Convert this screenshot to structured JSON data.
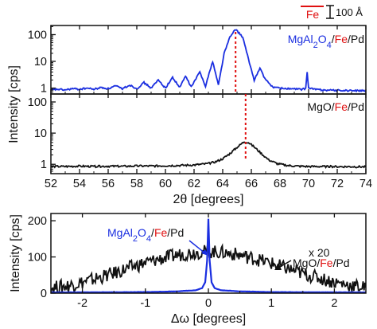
{
  "colors": {
    "blue": "#1a2ee0",
    "black": "#111111",
    "red": "#e01010"
  },
  "shared": {
    "y_title": "Intensity [cps]"
  },
  "scale_bar": {
    "fe_text": "Fe",
    "length_text": "100 Å"
  },
  "chart_data": [
    {
      "id": "xrd-mgal2o4",
      "type": "line",
      "scale": "log",
      "xlim": [
        52,
        74
      ],
      "ylim": [
        0.6,
        220
      ],
      "yticks": [
        1,
        10,
        100
      ],
      "ytick_labels": [
        "1",
        "10",
        "100"
      ],
      "label_parts": [
        {
          "text": "MgAl",
          "color": "blue"
        },
        {
          "text": "2",
          "color": "blue",
          "sub": true
        },
        {
          "text": "O",
          "color": "blue"
        },
        {
          "text": "4",
          "color": "blue",
          "sub": true
        },
        {
          "text": "/",
          "color": "black"
        },
        {
          "text": "Fe",
          "color": "red"
        },
        {
          "text": "/Pd",
          "color": "black"
        }
      ],
      "peak_marker_x": 64.9,
      "series": [
        {
          "color": "blue",
          "points": [
            [
              52,
              0.85
            ],
            [
              52.5,
              0.9
            ],
            [
              53,
              0.85
            ],
            [
              53.5,
              0.95
            ],
            [
              54,
              0.9
            ],
            [
              54.5,
              1.0
            ],
            [
              55,
              0.9
            ],
            [
              55.5,
              1.05
            ],
            [
              56,
              0.95
            ],
            [
              56.5,
              1.2
            ],
            [
              57,
              0.95
            ],
            [
              57.5,
              1.3
            ],
            [
              58,
              0.95
            ],
            [
              58.5,
              1.6
            ],
            [
              59,
              1.0
            ],
            [
              59.5,
              2.0
            ],
            [
              60,
              1.0
            ],
            [
              60.5,
              2.5
            ],
            [
              61,
              1.05
            ],
            [
              61.4,
              2.8
            ],
            [
              61.8,
              1.1
            ],
            [
              62.4,
              4.0
            ],
            [
              62.8,
              1.2
            ],
            [
              63.3,
              10.0
            ],
            [
              63.7,
              1.3
            ],
            [
              64.1,
              20.0
            ],
            [
              64.5,
              80.0
            ],
            [
              64.9,
              160.0
            ],
            [
              65.4,
              80.0
            ],
            [
              65.8,
              12.0
            ],
            [
              66.2,
              2.0
            ],
            [
              66.6,
              5.5
            ],
            [
              67.0,
              2.0
            ],
            [
              67.5,
              1.1
            ],
            [
              68,
              1.0
            ],
            [
              68.5,
              0.95
            ],
            [
              69.5,
              0.9
            ],
            [
              69.8,
              0.95
            ],
            [
              69.9,
              4.0
            ],
            [
              70.0,
              1.0
            ],
            [
              70.5,
              0.9
            ],
            [
              71,
              0.85
            ],
            [
              72,
              0.82
            ],
            [
              73,
              0.8
            ],
            [
              74,
              0.8
            ]
          ]
        }
      ]
    },
    {
      "id": "xrd-mgo",
      "type": "line",
      "scale": "log",
      "xlim": [
        52,
        74
      ],
      "ylim": [
        0.5,
        180
      ],
      "yticks": [
        1,
        10,
        100
      ],
      "ytick_labels": [
        "1",
        "10",
        "100"
      ],
      "xticks": [
        52,
        54,
        56,
        58,
        60,
        62,
        64,
        66,
        68,
        70,
        72,
        74
      ],
      "xtick_labels": [
        "52",
        "54",
        "56",
        "58",
        "60",
        "62",
        "64",
        "66",
        "68",
        "70",
        "72",
        "74"
      ],
      "xlabel": "2θ [degrees]",
      "label_parts": [
        {
          "text": "MgO/",
          "color": "black"
        },
        {
          "text": "Fe",
          "color": "red"
        },
        {
          "text": "/Pd",
          "color": "black"
        }
      ],
      "peak_marker_x": 65.6,
      "series": [
        {
          "color": "black",
          "points": [
            [
              52,
              0.85
            ],
            [
              53,
              0.85
            ],
            [
              54,
              0.87
            ],
            [
              55,
              0.85
            ],
            [
              56,
              0.87
            ],
            [
              57,
              0.86
            ],
            [
              58,
              0.88
            ],
            [
              59,
              0.88
            ],
            [
              60,
              0.9
            ],
            [
              61,
              0.92
            ],
            [
              62,
              0.95
            ],
            [
              63,
              1.05
            ],
            [
              63.5,
              1.2
            ],
            [
              64,
              1.5
            ],
            [
              64.5,
              2.2
            ],
            [
              65,
              3.5
            ],
            [
              65.5,
              5.3
            ],
            [
              65.8,
              5.0
            ],
            [
              66.2,
              3.6
            ],
            [
              66.7,
              2.2
            ],
            [
              67.2,
              1.4
            ],
            [
              67.8,
              1.05
            ],
            [
              68.5,
              0.92
            ],
            [
              69,
              0.88
            ],
            [
              70,
              0.85
            ],
            [
              71,
              0.85
            ],
            [
              72,
              0.84
            ],
            [
              73,
              0.84
            ],
            [
              74,
              0.83
            ]
          ]
        }
      ]
    },
    {
      "id": "rocking-curve",
      "type": "line",
      "scale": "linear",
      "xlim": [
        -2.5,
        2.5
      ],
      "ylim": [
        0,
        220
      ],
      "yticks": [
        0,
        100,
        200
      ],
      "ytick_labels": [
        "0",
        "100",
        "200"
      ],
      "xticks": [
        -2,
        -1,
        0,
        1,
        2
      ],
      "xtick_labels": [
        "-2",
        "-1",
        "0",
        "1",
        "2"
      ],
      "xlabel": "Δω [degrees]",
      "ylabel": "Intensity [cps]",
      "label_blue_parts": [
        {
          "text": "MgAl",
          "color": "blue"
        },
        {
          "text": "2",
          "color": "blue",
          "sub": true
        },
        {
          "text": "O",
          "color": "blue"
        },
        {
          "text": "4",
          "color": "blue",
          "sub": true
        },
        {
          "text": "/",
          "color": "black"
        },
        {
          "text": "Fe",
          "color": "red"
        },
        {
          "text": "/Pd",
          "color": "black"
        }
      ],
      "label_black_parts": [
        {
          "text": "MgO/",
          "color": "black"
        },
        {
          "text": "Fe",
          "color": "red"
        },
        {
          "text": "/Pd",
          "color": "black"
        }
      ],
      "multiplier_text": "x 20",
      "series": [
        {
          "name": "MgO/Fe/Pd (x 20)",
          "color": "black",
          "points": [
            [
              -2.5,
              15
            ],
            [
              -2.25,
              20
            ],
            [
              -2.0,
              30
            ],
            [
              -1.75,
              42
            ],
            [
              -1.5,
              55
            ],
            [
              -1.25,
              70
            ],
            [
              -1.0,
              84
            ],
            [
              -0.75,
              95
            ],
            [
              -0.5,
              105
            ],
            [
              -0.25,
              112
            ],
            [
              0.0,
              115
            ],
            [
              0.25,
              112
            ],
            [
              0.5,
              105
            ],
            [
              0.75,
              95
            ],
            [
              1.0,
              82
            ],
            [
              1.25,
              68
            ],
            [
              1.5,
              54
            ],
            [
              1.75,
              42
            ],
            [
              2.0,
              30
            ],
            [
              2.25,
              22
            ],
            [
              2.5,
              15
            ]
          ]
        },
        {
          "name": "MgAl2O4/Fe/Pd",
          "color": "blue",
          "points": [
            [
              -2.5,
              2
            ],
            [
              -1.0,
              3
            ],
            [
              -0.5,
              5
            ],
            [
              -0.2,
              8
            ],
            [
              -0.1,
              14
            ],
            [
              -0.05,
              30
            ],
            [
              -0.02,
              90
            ],
            [
              0.0,
              205
            ],
            [
              0.02,
              90
            ],
            [
              0.05,
              30
            ],
            [
              0.1,
              14
            ],
            [
              0.2,
              8
            ],
            [
              0.5,
              5
            ],
            [
              1.0,
              3
            ],
            [
              2.5,
              2
            ]
          ]
        }
      ]
    }
  ]
}
